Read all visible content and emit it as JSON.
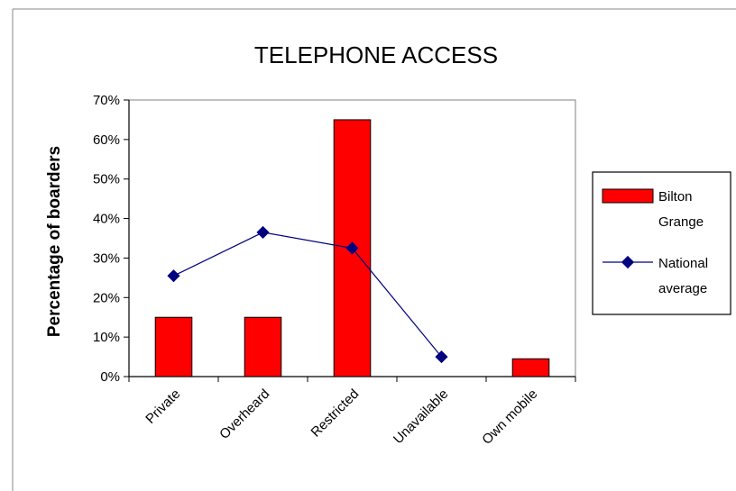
{
  "chart_data": {
    "type": "bar",
    "title": "TELEPHONE ACCESS",
    "ylabel": "Percentage of boarders",
    "xlabel": "",
    "categories": [
      "Private",
      "Overheard",
      "Restricted",
      "Unavailable",
      "Own mobile"
    ],
    "ylim": [
      0,
      70
    ],
    "yticks": [
      "0%",
      "10%",
      "20%",
      "30%",
      "40%",
      "50%",
      "60%",
      "70%"
    ],
    "series": [
      {
        "name": "Bilton Grange",
        "type": "bar",
        "color": "#ff0000",
        "values": [
          15,
          15,
          65,
          0,
          4.5
        ]
      },
      {
        "name": "National average",
        "type": "line",
        "color": "#000080",
        "values": [
          25.5,
          36.5,
          32.5,
          5,
          null
        ]
      }
    ],
    "legend": {
      "placement": "right",
      "entries": [
        {
          "label_line1": "Bilton",
          "label_line2": "Grange"
        },
        {
          "label_line1": "National",
          "label_line2": "average"
        }
      ]
    },
    "grid": false
  }
}
